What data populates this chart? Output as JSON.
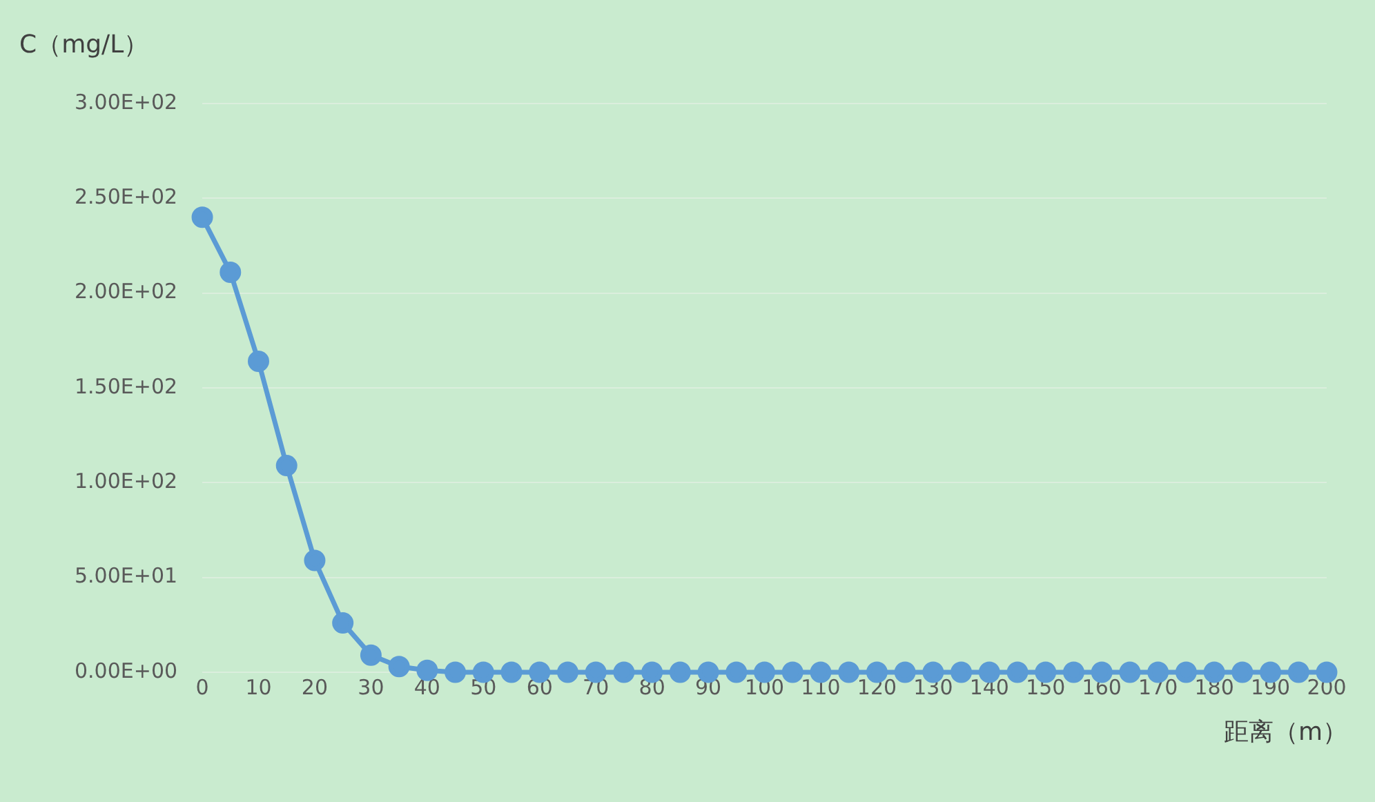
{
  "chart_data": {
    "type": "line",
    "xlabel": "距离（m）",
    "ylabel": "C（mg/L）",
    "x": [
      0,
      5,
      10,
      15,
      20,
      25,
      30,
      35,
      40,
      45,
      50,
      55,
      60,
      65,
      70,
      75,
      80,
      85,
      90,
      95,
      100,
      105,
      110,
      115,
      120,
      125,
      130,
      135,
      140,
      145,
      150,
      155,
      160,
      165,
      170,
      175,
      180,
      185,
      190,
      195,
      200
    ],
    "series": [
      {
        "color": "#5b9bd5",
        "values": [
          240,
          211,
          164,
          109,
          59,
          26,
          9,
          3,
          1,
          0,
          0,
          0,
          0,
          0,
          0,
          0,
          0,
          0,
          0,
          0,
          0,
          0,
          0,
          0,
          0,
          0,
          0,
          0,
          0,
          0,
          0,
          0,
          0,
          0,
          0,
          0,
          0,
          0,
          0,
          0,
          0
        ]
      }
    ],
    "xlim": [
      0,
      200
    ],
    "xticks": [
      0,
      10,
      20,
      30,
      40,
      50,
      60,
      70,
      80,
      90,
      100,
      110,
      120,
      130,
      140,
      150,
      160,
      170,
      180,
      190,
      200
    ],
    "ylim": [
      0,
      300
    ],
    "yticks": [
      {
        "value": 0,
        "label": "0.00E+00"
      },
      {
        "value": 50,
        "label": "5.00E+01"
      },
      {
        "value": 100,
        "label": "1.00E+02"
      },
      {
        "value": 150,
        "label": "1.50E+02"
      },
      {
        "value": 200,
        "label": "2.00E+02"
      },
      {
        "value": 250,
        "label": "2.50E+02"
      },
      {
        "value": 300,
        "label": "3.00E+02"
      }
    ],
    "grid": "y",
    "legend": false,
    "marker": "circle",
    "line_style": "solid"
  }
}
